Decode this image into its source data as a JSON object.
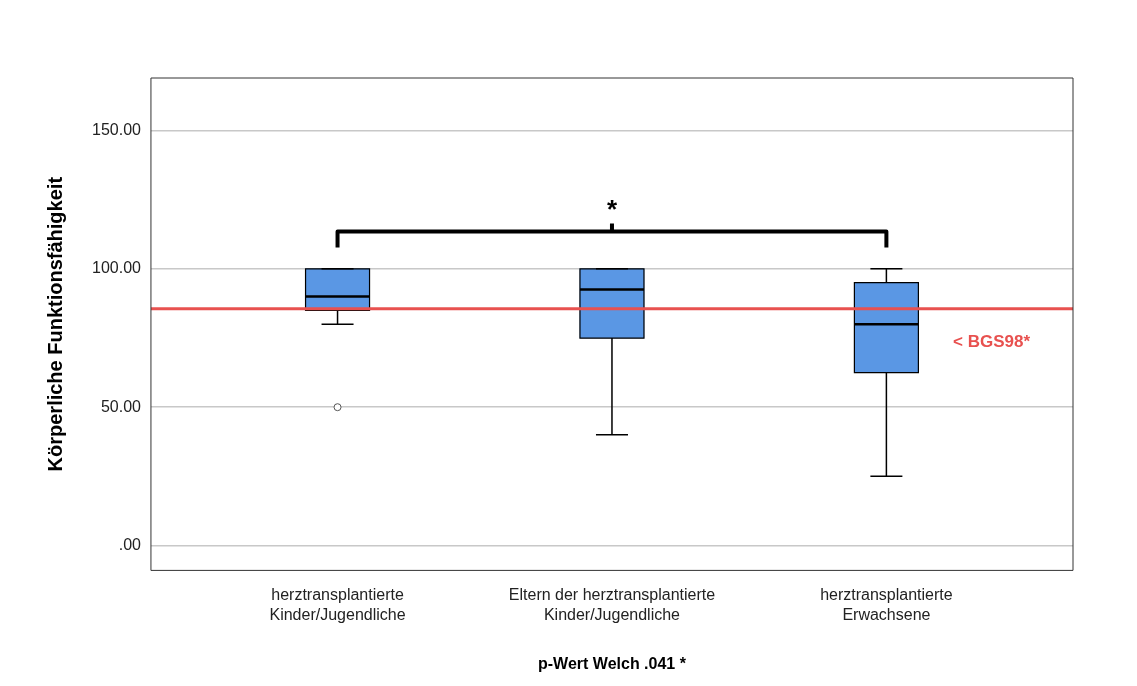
{
  "chart_data": {
    "type": "box",
    "ylabel": "Körperliche Funktionsfähigkeit",
    "xlabel": "p-Wert Welch .041 *",
    "categories": [
      "herztransplantierte\nKinder/Jugendliche",
      "Eltern der herztransplantierte\nKinder/Jugendliche",
      "herztransplantierte\nErwachsene"
    ],
    "color": "#5a97e4",
    "boxes": [
      {
        "low": 80,
        "q1": 85,
        "median": 90,
        "q3": 100,
        "high": 100,
        "outliers": [
          50
        ]
      },
      {
        "low": 40,
        "q1": 75,
        "median": 92.5,
        "q3": 100,
        "high": 100
      },
      {
        "low": 25,
        "q1": 62.5,
        "median": 80,
        "q3": 95,
        "high": 100
      }
    ],
    "ylim": [
      -9,
      169
    ],
    "yticks": [
      {
        "value": 0,
        "label": ".00"
      },
      {
        "value": 50,
        "label": "50.00"
      },
      {
        "value": 100,
        "label": "100.00"
      },
      {
        "value": 150,
        "label": "150.00"
      }
    ],
    "grid": "y",
    "legend": false,
    "ref_lines": [
      {
        "axis": "y",
        "value": 85.6,
        "label": "< BGS98*",
        "color": "#e8514f"
      }
    ],
    "annotations": [
      "*"
    ]
  }
}
